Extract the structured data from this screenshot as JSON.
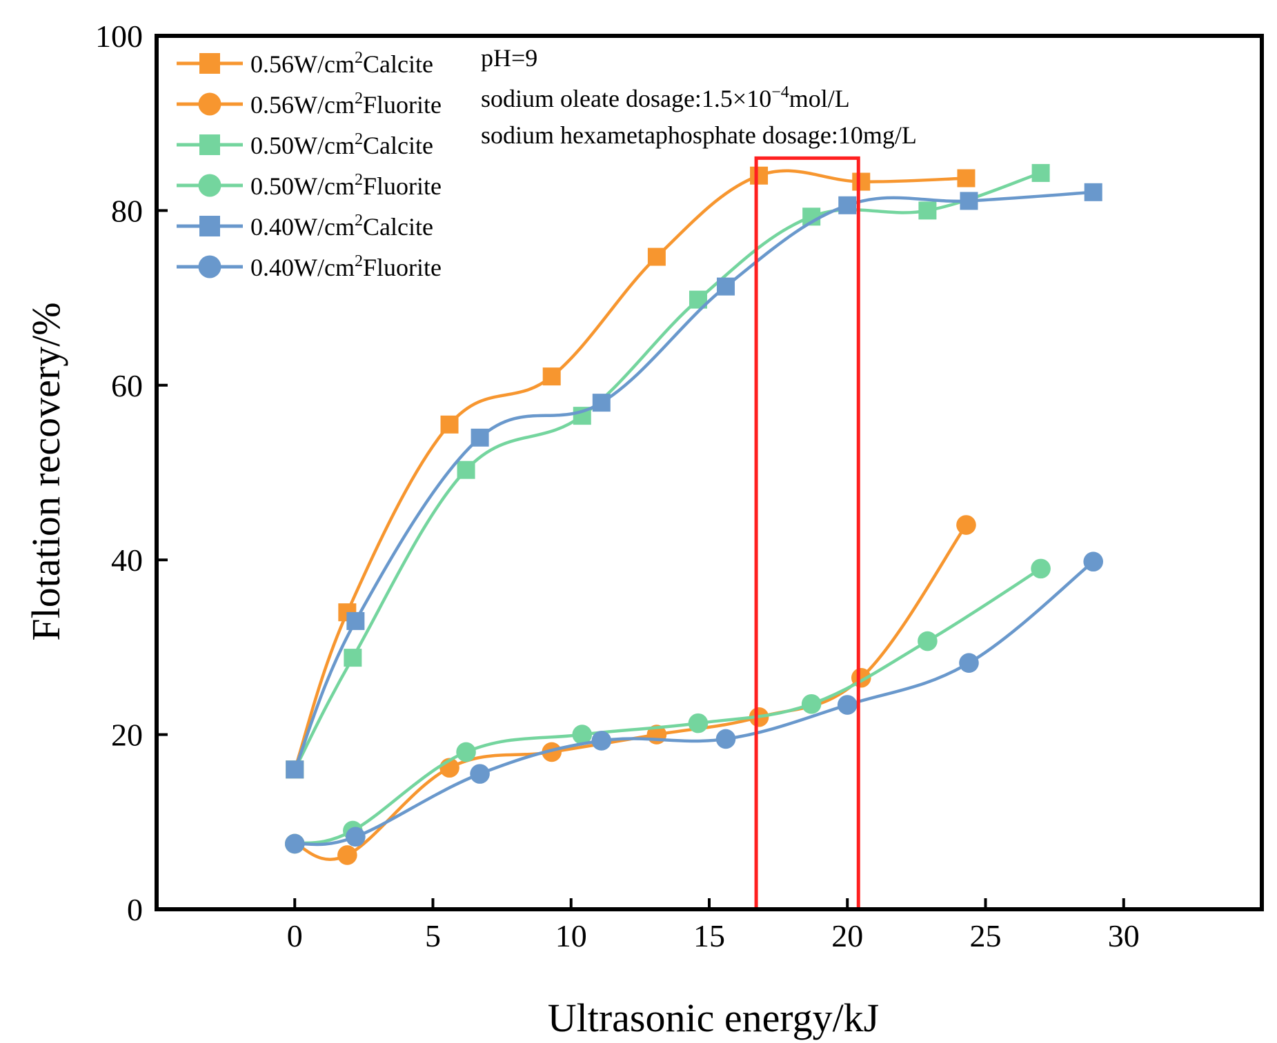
{
  "colors": {
    "orange": "#F7962F",
    "green": "#74D59E",
    "blue": "#6998CC",
    "highlight": "#FF2020",
    "axis": "#000000"
  },
  "chart_data": {
    "type": "line",
    "title": "",
    "xlabel": "Ultrasonic energy/kJ",
    "ylabel": "Flotation recovery/%",
    "xlim": [
      -5,
      35
    ],
    "ylim": [
      0,
      100
    ],
    "xticks": [
      0,
      5,
      10,
      15,
      20,
      25,
      30
    ],
    "yticks": [
      0,
      20,
      40,
      60,
      80,
      100
    ],
    "smooth": true,
    "legend_position": "top-left",
    "series": [
      {
        "name": "0.56W/cm2Calcite",
        "label_main": "0.56W/cm",
        "label_sup": "2",
        "label_tail": "Calcite",
        "marker": "square",
        "color": "#F7962F",
        "x": [
          0,
          1.9,
          5.6,
          9.3,
          13.1,
          16.8,
          20.5,
          24.3
        ],
        "y": [
          16,
          34,
          55.5,
          61,
          74.7,
          84,
          83.3,
          83.7
        ]
      },
      {
        "name": "0.56W/cm2Fluorite",
        "label_main": "0.56W/cm",
        "label_sup": "2",
        "label_tail": "Fluorite",
        "marker": "circle",
        "color": "#F7962F",
        "x": [
          0,
          1.9,
          5.6,
          9.3,
          13.1,
          16.8,
          20.5,
          24.3
        ],
        "y": [
          7.5,
          6.2,
          16.2,
          18,
          20,
          22,
          26.5,
          44
        ]
      },
      {
        "name": "0.50W/cm2Calcite",
        "label_main": "0.50W/cm",
        "label_sup": "2",
        "label_tail": "Calcite",
        "marker": "square",
        "color": "#74D59E",
        "x": [
          0,
          2.1,
          6.2,
          10.4,
          14.6,
          18.7,
          22.9,
          27
        ],
        "y": [
          16,
          28.8,
          50.3,
          56.5,
          69.8,
          79.3,
          80,
          84.3
        ]
      },
      {
        "name": "0.50W/cm2Fluorite",
        "label_main": "0.50W/cm",
        "label_sup": "2",
        "label_tail": "Fluorite",
        "marker": "circle",
        "color": "#74D59E",
        "x": [
          0,
          2.1,
          6.2,
          10.4,
          14.6,
          18.7,
          22.9,
          27
        ],
        "y": [
          7.5,
          9,
          18,
          20,
          21.3,
          23.5,
          30.7,
          39
        ]
      },
      {
        "name": "0.40W/cm2Calcite",
        "label_main": "0.40W/cm",
        "label_sup": "2",
        "label_tail": "Calcite",
        "marker": "square",
        "color": "#6998CC",
        "x": [
          0,
          2.2,
          6.7,
          11.1,
          15.6,
          20,
          24.4,
          28.9
        ],
        "y": [
          16,
          33,
          54,
          58,
          71.3,
          80.6,
          81.1,
          82.1
        ]
      },
      {
        "name": "0.40W/cm2Fluorite",
        "label_main": "0.40W/cm",
        "label_sup": "2",
        "label_tail": "Fluorite",
        "marker": "circle",
        "color": "#6998CC",
        "x": [
          0,
          2.2,
          6.7,
          11.1,
          15.6,
          20,
          24.4,
          28.9
        ],
        "y": [
          7.5,
          8.3,
          15.5,
          19.3,
          19.5,
          23.4,
          28.2,
          39.8
        ]
      }
    ],
    "annotations": {
      "ph": "pH=9",
      "oleate_prefix": "sodium oleate dosage:1.5×10",
      "oleate_exp": "−4",
      "oleate_suffix": "mol/L",
      "hexameta": "sodium hexametaphosphate dosage:10mg/L"
    },
    "highlight_box": {
      "x_range": [
        16.7,
        20.4
      ],
      "y_range": [
        0,
        86
      ]
    }
  }
}
